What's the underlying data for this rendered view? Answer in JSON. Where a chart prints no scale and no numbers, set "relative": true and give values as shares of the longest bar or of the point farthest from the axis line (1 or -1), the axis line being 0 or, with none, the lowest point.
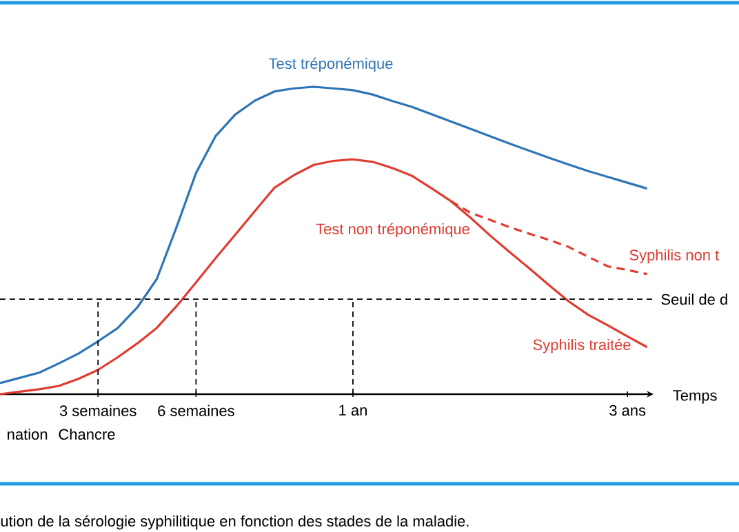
{
  "chart_data": {
    "type": "line",
    "relative": true,
    "xlabel": "Temps",
    "categories": [
      null,
      null,
      null,
      null,
      null,
      "3 semaines",
      null,
      null,
      null,
      null,
      "6 semaines",
      null,
      null,
      null,
      null,
      null,
      null,
      null,
      "1 an",
      null,
      null,
      null,
      null,
      null,
      null,
      null,
      null,
      null,
      null,
      null,
      null,
      null,
      "3 ans",
      null
    ],
    "series": [
      {
        "name": "Test tréponémique",
        "color": "#2e75b6",
        "values": [
          0.036,
          0.053,
          0.07,
          0.1,
          0.132,
          0.172,
          0.215,
          0.282,
          0.375,
          0.543,
          0.72,
          0.84,
          0.91,
          0.955,
          0.985,
          0.995,
          1.0,
          0.995,
          0.989,
          0.975,
          0.954,
          0.935,
          0.911,
          0.887,
          0.863,
          0.839,
          0.815,
          0.792,
          0.769,
          0.747,
          0.726,
          0.707,
          0.688,
          0.669
        ]
      },
      {
        "name": "Test non tréponémique",
        "color": "#e03c31",
        "values": [
          0,
          0.008,
          0.016,
          0.027,
          0.05,
          0.079,
          0.12,
          0.165,
          0.216,
          0.286,
          0.364,
          0.443,
          0.519,
          0.596,
          0.672,
          0.713,
          0.746,
          0.759,
          0.764,
          0.756,
          0.736,
          0.711,
          0.67,
          0.628,
          0.574,
          0.516,
          0.462,
          0.409,
          0.355,
          0.302,
          0.258,
          0.224,
          0.188,
          0.153
        ]
      },
      {
        "name": "Syphilis non t",
        "color": "#e03c31",
        "line_style": "dashed",
        "values": [
          null,
          null,
          null,
          null,
          null,
          null,
          null,
          null,
          null,
          null,
          null,
          null,
          null,
          null,
          null,
          null,
          null,
          null,
          null,
          null,
          null,
          null,
          null,
          0.628,
          0.59,
          0.567,
          0.543,
          0.522,
          0.502,
          0.479,
          0.447,
          0.416,
          0.404,
          0.391
        ]
      }
    ],
    "ref_lines": [
      {
        "axis": "y",
        "value": 0.309,
        "label": "Seuil de d",
        "line_style": "dashed",
        "color": "#000000"
      },
      {
        "axis": "x",
        "value": "3 semaines",
        "line_style": "dashed",
        "color": "#000000"
      },
      {
        "axis": "x",
        "value": "6 semaines",
        "line_style": "dashed",
        "color": "#000000"
      },
      {
        "axis": "x",
        "value": "1 an",
        "line_style": "dashed",
        "color": "#000000"
      }
    ],
    "annotations": [
      "Syphilis traitée",
      "nation",
      "Chancre",
      "ution de la sérologie syphilitique en fonction des stades de la maladie."
    ]
  }
}
